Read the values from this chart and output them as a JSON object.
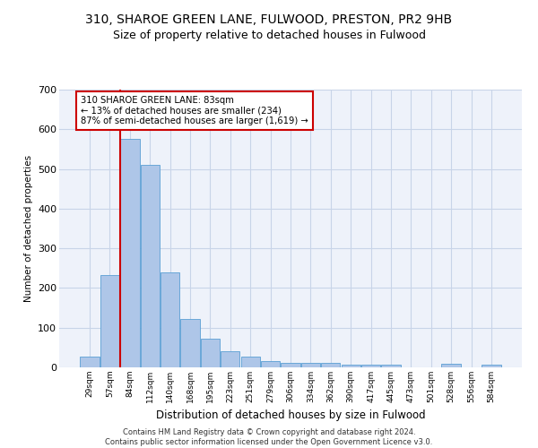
{
  "title_line1": "310, SHAROE GREEN LANE, FULWOOD, PRESTON, PR2 9HB",
  "title_line2": "Size of property relative to detached houses in Fulwood",
  "xlabel": "Distribution of detached houses by size in Fulwood",
  "ylabel": "Number of detached properties",
  "footnote": "Contains HM Land Registry data © Crown copyright and database right 2024.\nContains public sector information licensed under the Open Government Licence v3.0.",
  "bar_labels": [
    "29sqm",
    "57sqm",
    "84sqm",
    "112sqm",
    "140sqm",
    "168sqm",
    "195sqm",
    "223sqm",
    "251sqm",
    "279sqm",
    "306sqm",
    "334sqm",
    "362sqm",
    "390sqm",
    "417sqm",
    "445sqm",
    "473sqm",
    "501sqm",
    "528sqm",
    "556sqm",
    "584sqm"
  ],
  "bar_values": [
    27,
    232,
    575,
    510,
    240,
    122,
    72,
    40,
    27,
    16,
    12,
    12,
    11,
    6,
    6,
    6,
    0,
    0,
    9,
    0,
    7
  ],
  "bar_color": "#aec6e8",
  "bar_edge_color": "#5a9fd4",
  "highlight_line_color": "#cc0000",
  "annotation_box_text": "310 SHAROE GREEN LANE: 83sqm\n← 13% of detached houses are smaller (234)\n87% of semi-detached houses are larger (1,619) →",
  "annotation_box_color": "#cc0000",
  "ylim": [
    0,
    700
  ],
  "yticks": [
    0,
    100,
    200,
    300,
    400,
    500,
    600,
    700
  ],
  "grid_color": "#c8d4e8",
  "background_color": "#eef2fa",
  "title_fontsize": 10,
  "subtitle_fontsize": 9,
  "bar_width": 0.95
}
